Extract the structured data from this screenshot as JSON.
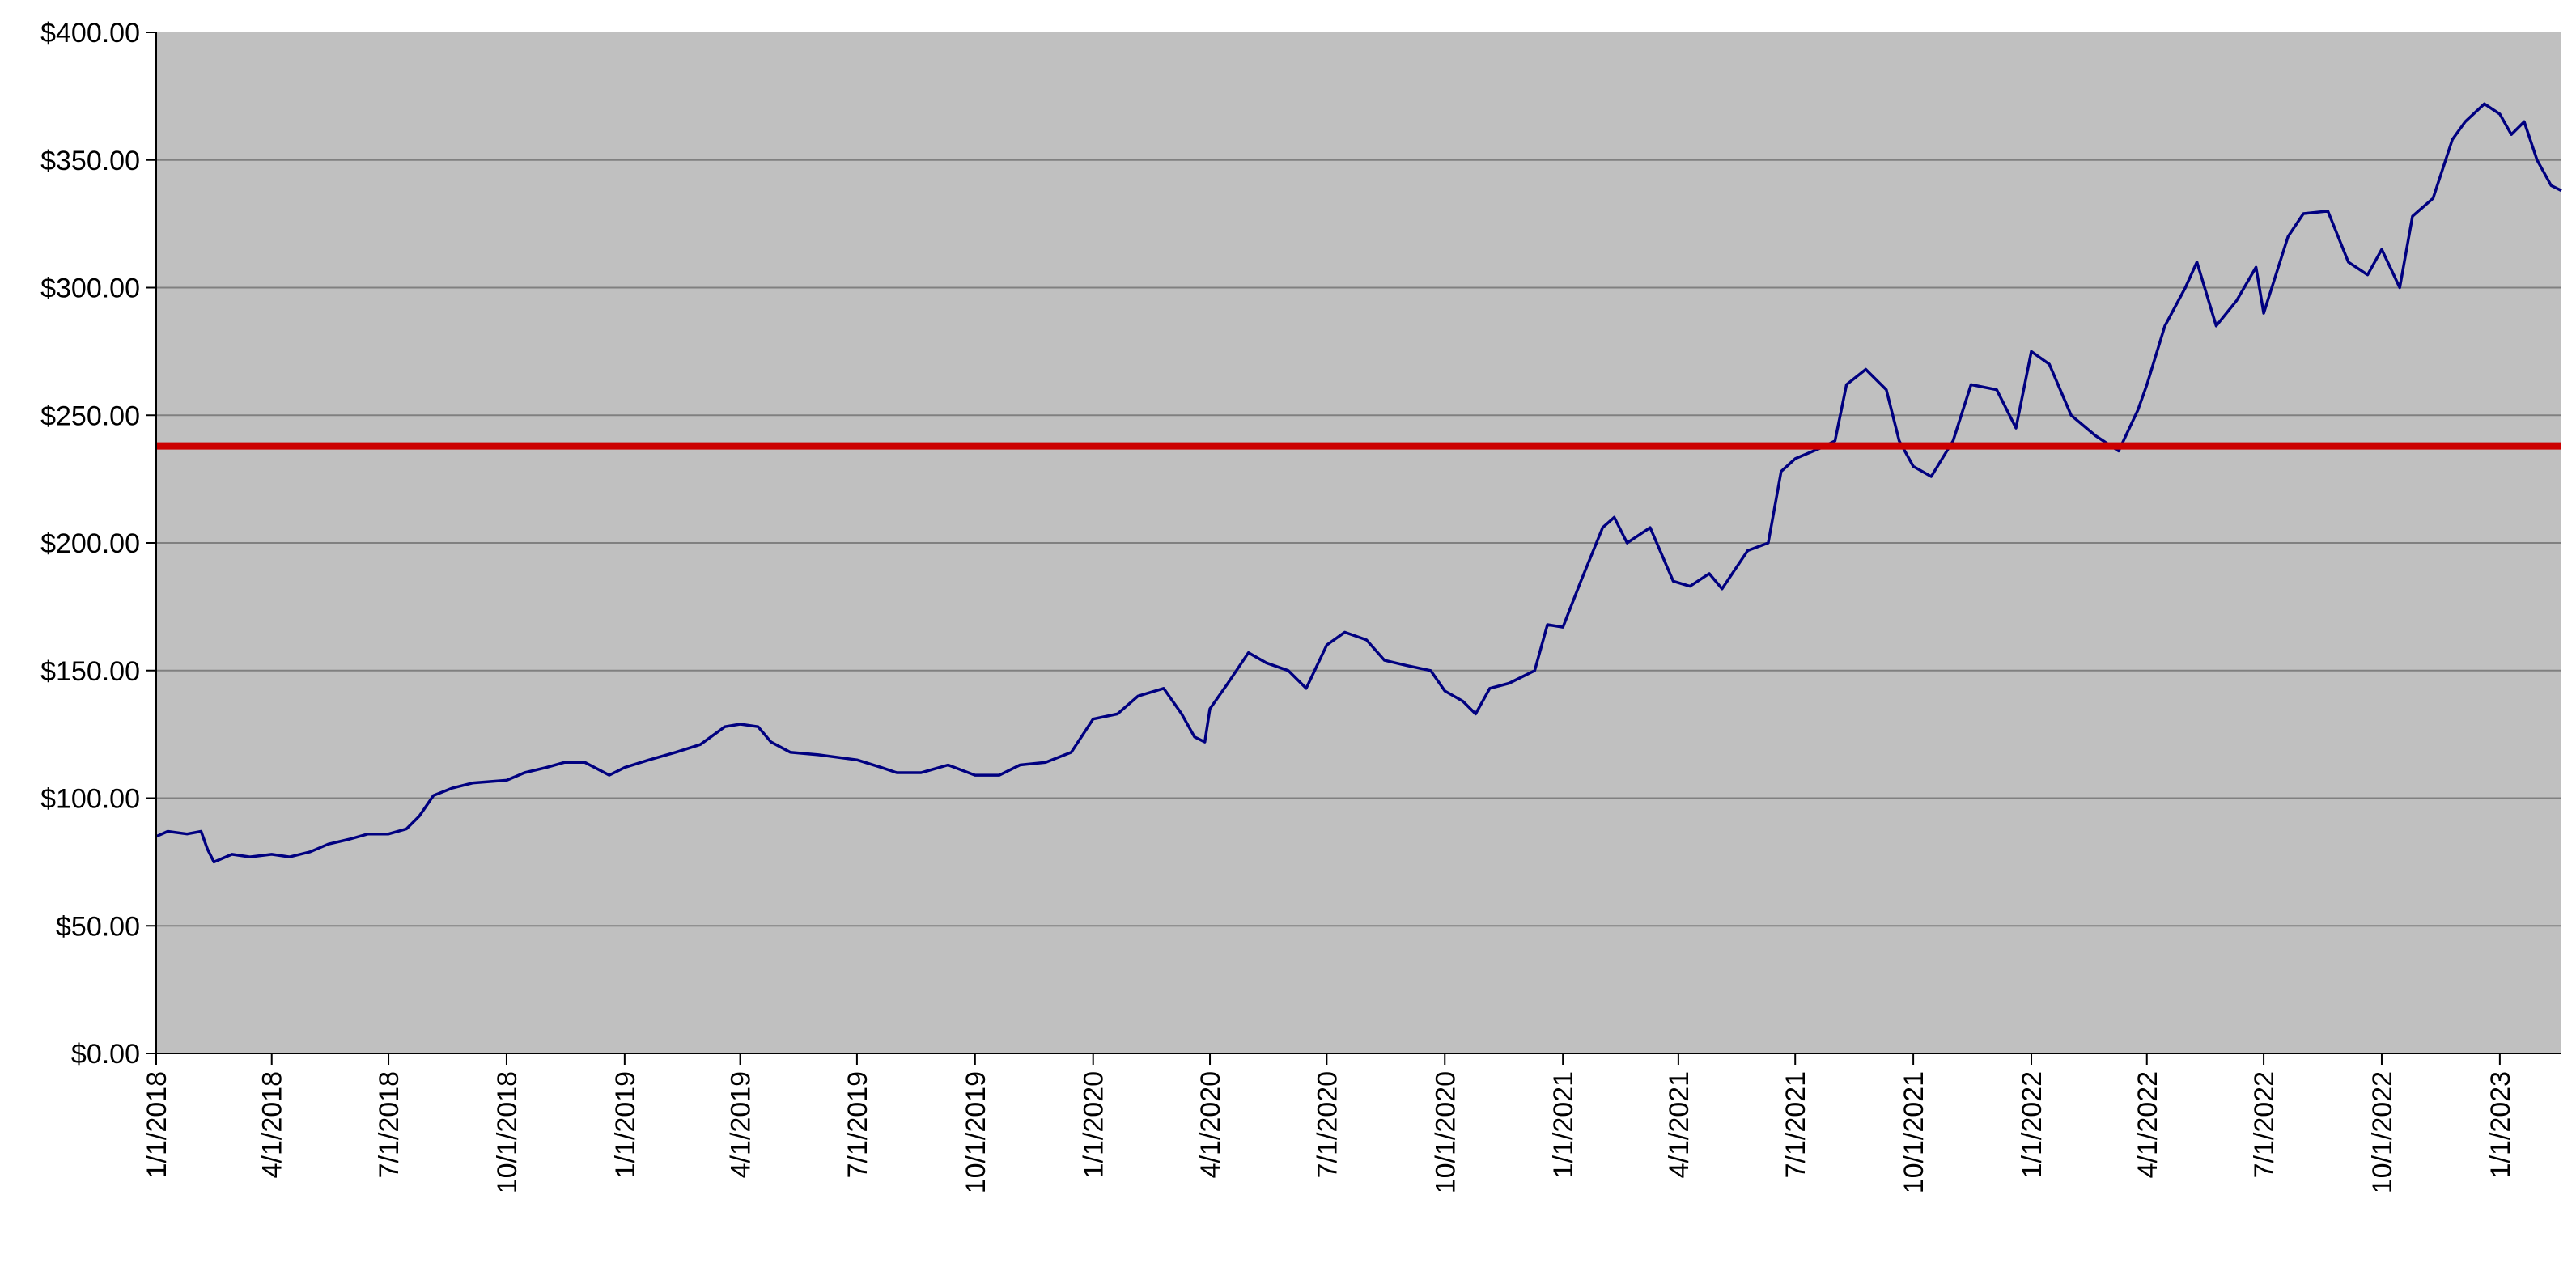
{
  "chart_data": {
    "type": "line",
    "title": "",
    "xlabel": "",
    "ylabel": "",
    "ylim": [
      0,
      400
    ],
    "xlim": [
      "2018-01-01",
      "2023-02-18"
    ],
    "grid": true,
    "legend": "none",
    "y_ticks": [
      "$0.00",
      "$50.00",
      "$100.00",
      "$150.00",
      "$200.00",
      "$250.00",
      "$300.00",
      "$350.00",
      "$400.00"
    ],
    "x_ticks": [
      {
        "date": "2018-01-01",
        "label": "1/1/2018"
      },
      {
        "date": "2018-04-01",
        "label": "4/1/2018"
      },
      {
        "date": "2018-07-01",
        "label": "7/1/2018"
      },
      {
        "date": "2018-10-01",
        "label": "10/1/2018"
      },
      {
        "date": "2019-01-01",
        "label": "1/1/2019"
      },
      {
        "date": "2019-04-01",
        "label": "4/1/2019"
      },
      {
        "date": "2019-07-01",
        "label": "7/1/2019"
      },
      {
        "date": "2019-10-01",
        "label": "10/1/2019"
      },
      {
        "date": "2020-01-01",
        "label": "1/1/2020"
      },
      {
        "date": "2020-04-01",
        "label": "4/1/2020"
      },
      {
        "date": "2020-07-01",
        "label": "7/1/2020"
      },
      {
        "date": "2020-10-01",
        "label": "10/1/2020"
      },
      {
        "date": "2021-01-01",
        "label": "1/1/2021"
      },
      {
        "date": "2021-04-01",
        "label": "4/1/2021"
      },
      {
        "date": "2021-07-01",
        "label": "7/1/2021"
      },
      {
        "date": "2021-10-01",
        "label": "10/1/2021"
      },
      {
        "date": "2022-01-01",
        "label": "1/1/2022"
      },
      {
        "date": "2022-04-01",
        "label": "4/1/2022"
      },
      {
        "date": "2022-07-01",
        "label": "7/1/2022"
      },
      {
        "date": "2022-10-01",
        "label": "10/1/2022"
      },
      {
        "date": "2023-01-01",
        "label": "1/1/2023"
      }
    ],
    "colors": {
      "plot_background": "#c0c0c0",
      "series_line": "#000080",
      "reference_line": "#cc0000",
      "gridline": "#808080"
    },
    "series": [
      {
        "points": [
          [
            "2018-01-01",
            85
          ],
          [
            "2018-01-10",
            87
          ],
          [
            "2018-01-25",
            86
          ],
          [
            "2018-02-05",
            87
          ],
          [
            "2018-02-10",
            80
          ],
          [
            "2018-02-15",
            75
          ],
          [
            "2018-03-01",
            78
          ],
          [
            "2018-03-15",
            77
          ],
          [
            "2018-04-01",
            78
          ],
          [
            "2018-04-15",
            77
          ],
          [
            "2018-05-01",
            79
          ],
          [
            "2018-05-15",
            82
          ],
          [
            "2018-06-01",
            84
          ],
          [
            "2018-06-15",
            86
          ],
          [
            "2018-07-01",
            86
          ],
          [
            "2018-07-15",
            88
          ],
          [
            "2018-07-25",
            93
          ],
          [
            "2018-08-05",
            101
          ],
          [
            "2018-08-20",
            104
          ],
          [
            "2018-09-05",
            106
          ],
          [
            "2018-10-01",
            107
          ],
          [
            "2018-10-15",
            110
          ],
          [
            "2018-11-01",
            112
          ],
          [
            "2018-11-15",
            114
          ],
          [
            "2018-12-01",
            114
          ],
          [
            "2018-12-20",
            109
          ],
          [
            "2019-01-01",
            112
          ],
          [
            "2019-01-20",
            115
          ],
          [
            "2019-02-10",
            118
          ],
          [
            "2019-03-01",
            121
          ],
          [
            "2019-03-20",
            128
          ],
          [
            "2019-04-01",
            129
          ],
          [
            "2019-04-15",
            128
          ],
          [
            "2019-04-25",
            122
          ],
          [
            "2019-05-10",
            118
          ],
          [
            "2019-06-01",
            117
          ],
          [
            "2019-07-01",
            115
          ],
          [
            "2019-07-20",
            112
          ],
          [
            "2019-08-01",
            110
          ],
          [
            "2019-08-20",
            110
          ],
          [
            "2019-09-10",
            113
          ],
          [
            "2019-10-01",
            109
          ],
          [
            "2019-10-20",
            109
          ],
          [
            "2019-11-05",
            113
          ],
          [
            "2019-11-25",
            114
          ],
          [
            "2019-12-15",
            118
          ],
          [
            "2020-01-01",
            131
          ],
          [
            "2020-01-20",
            133
          ],
          [
            "2020-02-05",
            140
          ],
          [
            "2020-02-25",
            143
          ],
          [
            "2020-03-10",
            133
          ],
          [
            "2020-03-20",
            124
          ],
          [
            "2020-03-28",
            122
          ],
          [
            "2020-04-01",
            135
          ],
          [
            "2020-04-15",
            145
          ],
          [
            "2020-05-01",
            157
          ],
          [
            "2020-05-15",
            153
          ],
          [
            "2020-06-01",
            150
          ],
          [
            "2020-06-15",
            143
          ],
          [
            "2020-07-01",
            160
          ],
          [
            "2020-07-15",
            165
          ],
          [
            "2020-08-01",
            162
          ],
          [
            "2020-08-15",
            154
          ],
          [
            "2020-09-01",
            152
          ],
          [
            "2020-09-20",
            150
          ],
          [
            "2020-10-01",
            142
          ],
          [
            "2020-10-15",
            138
          ],
          [
            "2020-10-25",
            133
          ],
          [
            "2020-11-05",
            143
          ],
          [
            "2020-11-20",
            145
          ],
          [
            "2020-12-10",
            150
          ],
          [
            "2020-12-20",
            168
          ],
          [
            "2021-01-01",
            167
          ],
          [
            "2021-01-15",
            185
          ],
          [
            "2021-02-01",
            206
          ],
          [
            "2021-02-10",
            210
          ],
          [
            "2021-02-20",
            200
          ],
          [
            "2021-03-10",
            206
          ],
          [
            "2021-03-28",
            185
          ],
          [
            "2021-04-10",
            183
          ],
          [
            "2021-04-25",
            188
          ],
          [
            "2021-05-05",
            182
          ],
          [
            "2021-05-25",
            197
          ],
          [
            "2021-06-10",
            200
          ],
          [
            "2021-06-20",
            228
          ],
          [
            "2021-07-01",
            233
          ],
          [
            "2021-07-20",
            237
          ],
          [
            "2021-08-01",
            240
          ],
          [
            "2021-08-10",
            262
          ],
          [
            "2021-08-25",
            268
          ],
          [
            "2021-09-10",
            260
          ],
          [
            "2021-09-20",
            240
          ],
          [
            "2021-10-01",
            230
          ],
          [
            "2021-10-15",
            226
          ],
          [
            "2021-11-01",
            240
          ],
          [
            "2021-11-15",
            262
          ],
          [
            "2021-12-05",
            260
          ],
          [
            "2021-12-20",
            245
          ],
          [
            "2022-01-01",
            275
          ],
          [
            "2022-01-15",
            270
          ],
          [
            "2022-02-01",
            250
          ],
          [
            "2022-02-20",
            242
          ],
          [
            "2022-03-10",
            236
          ],
          [
            "2022-03-25",
            252
          ],
          [
            "2022-04-01",
            262
          ],
          [
            "2022-04-15",
            285
          ],
          [
            "2022-05-01",
            300
          ],
          [
            "2022-05-10",
            310
          ],
          [
            "2022-05-25",
            285
          ],
          [
            "2022-06-10",
            295
          ],
          [
            "2022-06-25",
            308
          ],
          [
            "2022-07-01",
            290
          ],
          [
            "2022-07-20",
            320
          ],
          [
            "2022-08-01",
            329
          ],
          [
            "2022-08-20",
            330
          ],
          [
            "2022-09-05",
            310
          ],
          [
            "2022-09-20",
            305
          ],
          [
            "2022-10-01",
            315
          ],
          [
            "2022-10-15",
            300
          ],
          [
            "2022-10-25",
            328
          ],
          [
            "2022-11-10",
            335
          ],
          [
            "2022-11-25",
            358
          ],
          [
            "2022-12-05",
            365
          ],
          [
            "2022-12-20",
            372
          ],
          [
            "2023-01-01",
            368
          ],
          [
            "2023-01-10",
            360
          ],
          [
            "2023-01-20",
            365
          ],
          [
            "2023-01-30",
            350
          ],
          [
            "2023-02-10",
            340
          ],
          [
            "2023-02-18",
            338
          ]
        ]
      }
    ],
    "reference_line": {
      "y": 238
    }
  }
}
